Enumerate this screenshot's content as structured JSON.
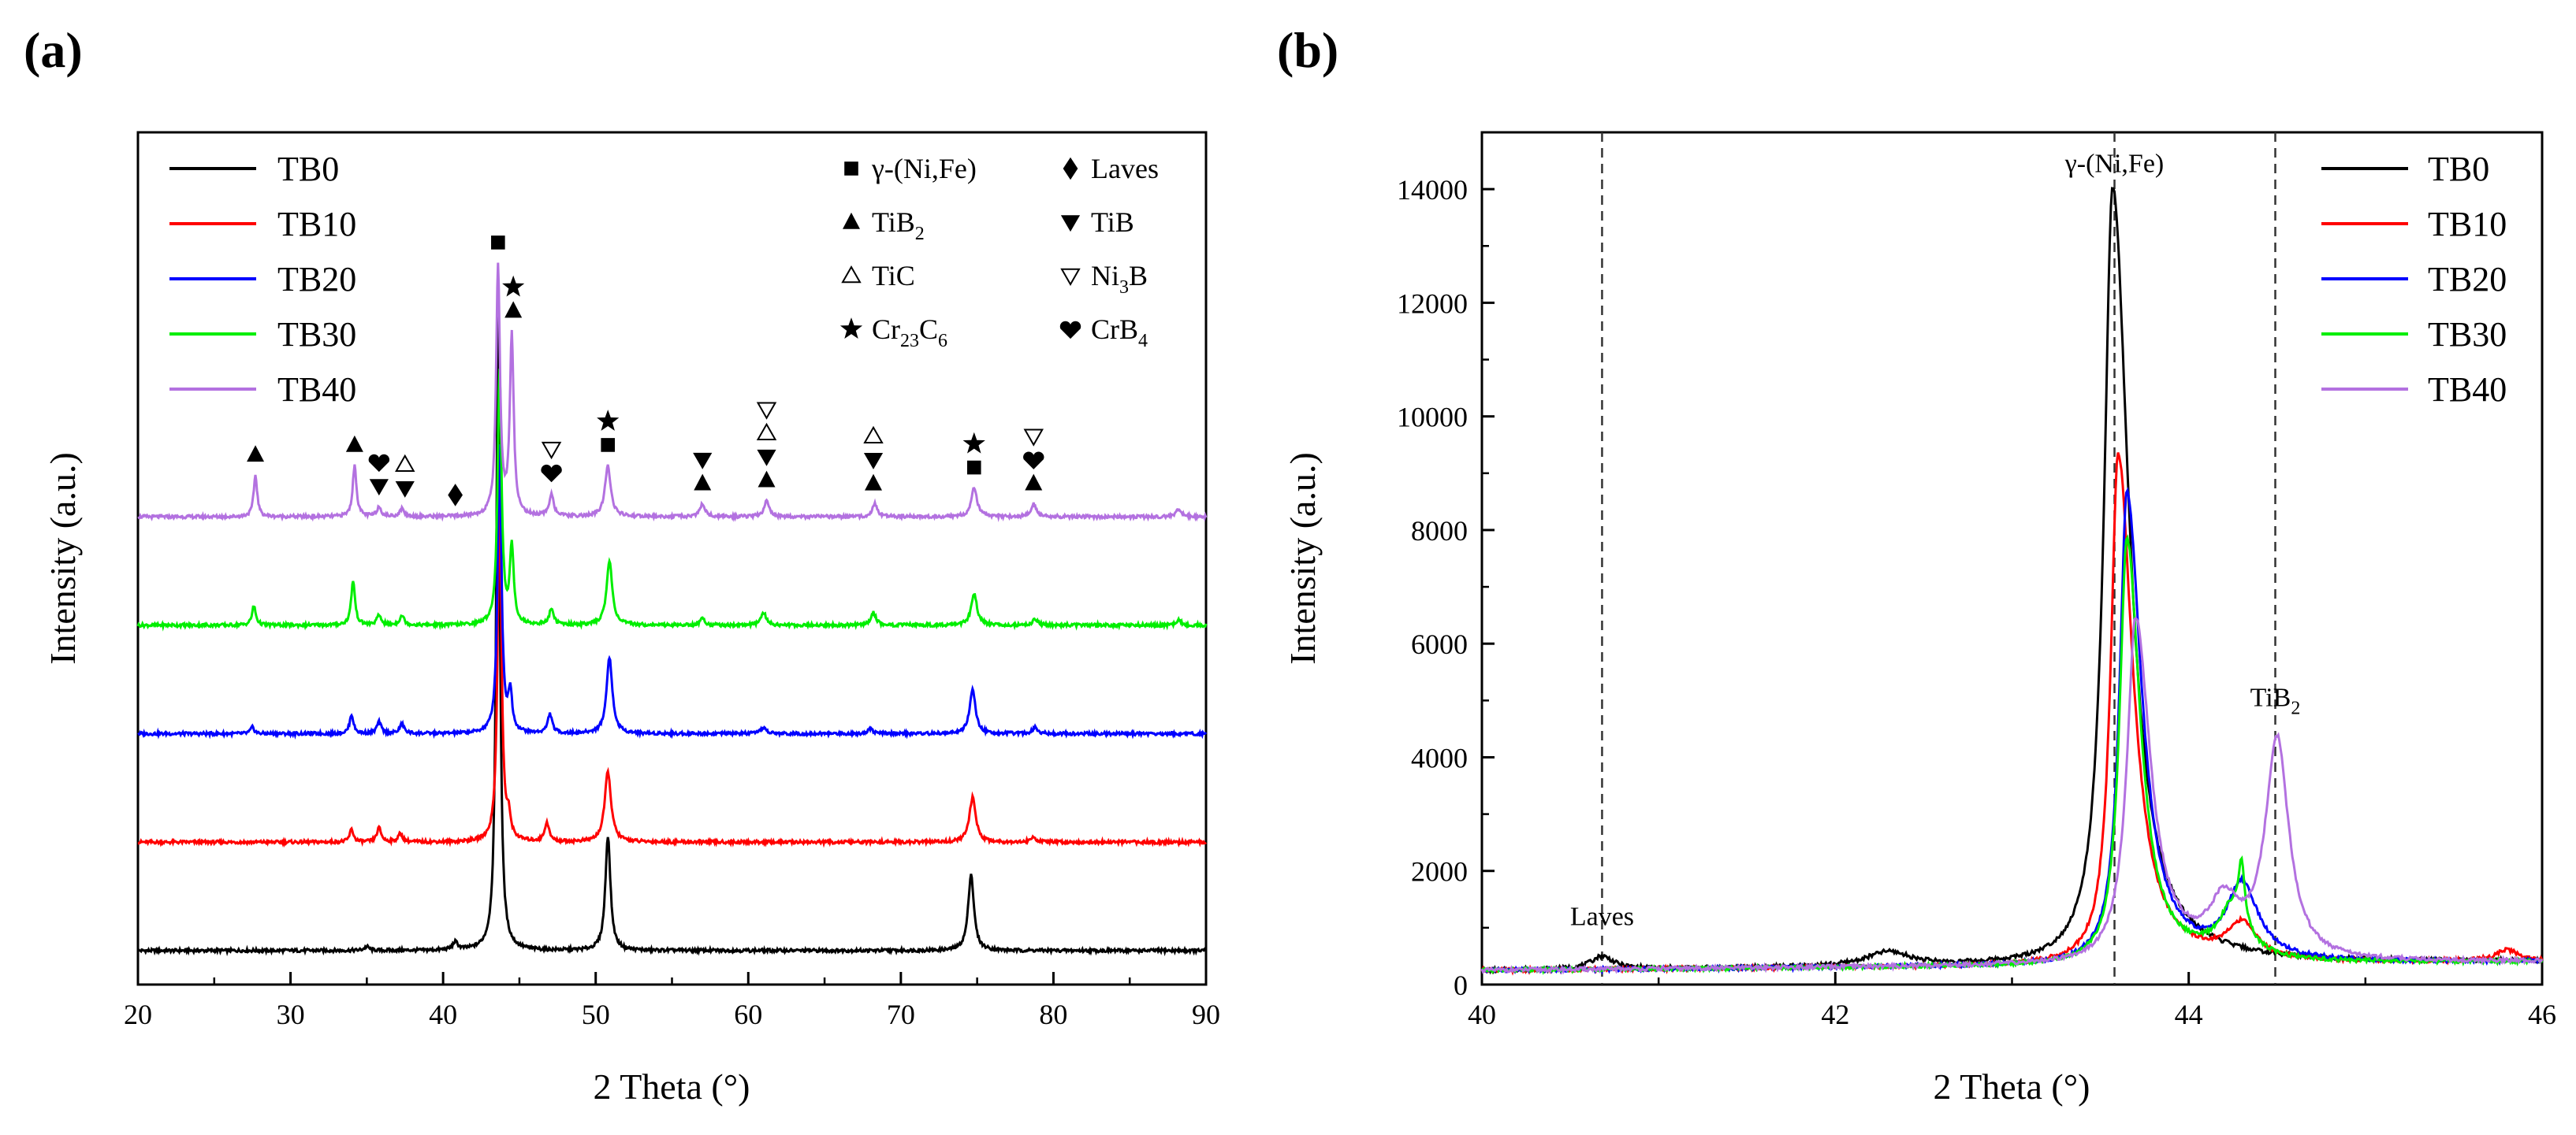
{
  "figure": {
    "panels": [
      {
        "label": "(a)",
        "chart_data": {
          "type": "line",
          "title": "",
          "xlabel": "2 Theta (°)",
          "ylabel": "Intensity (a.u.)",
          "xlim": [
            20,
            90
          ],
          "x_ticks": [
            20,
            30,
            40,
            50,
            60,
            70,
            80,
            90
          ],
          "y_ticks_shown": false,
          "grid": false,
          "legend_position": "top-left",
          "series": [
            {
              "name": "TB0",
              "color": "#000000",
              "offset": 0,
              "baseline": 1.0,
              "peaks": [
                [
                  43.6,
                  100,
                  0.28
                ],
                [
                  50.8,
                  18,
                  0.4
                ],
                [
                  74.6,
                  12,
                  0.45
                ],
                [
                  40.8,
                  1.2,
                  0.4
                ],
                [
                  35.0,
                  0.6,
                  0.4
                ]
              ]
            },
            {
              "name": "TB10",
              "color": "#ff0000",
              "offset": 17,
              "baseline": 1.0,
              "peaks": [
                [
                  43.7,
                  55,
                  0.3
                ],
                [
                  44.3,
                  3,
                  0.3
                ],
                [
                  50.8,
                  11,
                  0.5
                ],
                [
                  74.7,
                  7,
                  0.5
                ],
                [
                  34.0,
                  2,
                  0.3
                ],
                [
                  35.8,
                  2.2,
                  0.35
                ],
                [
                  37.2,
                  1.3,
                  0.35
                ],
                [
                  46.8,
                  3,
                  0.35
                ],
                [
                  78.7,
                  0.8,
                  0.4
                ]
              ]
            },
            {
              "name": "TB20",
              "color": "#0000ff",
              "offset": 34,
              "baseline": 1.0,
              "peaks": [
                [
                  43.7,
                  45,
                  0.3
                ],
                [
                  44.4,
                  6,
                  0.3
                ],
                [
                  50.9,
                  12,
                  0.45
                ],
                [
                  74.7,
                  7,
                  0.45
                ],
                [
                  34.0,
                  3,
                  0.3
                ],
                [
                  35.8,
                  1.8,
                  0.35
                ],
                [
                  37.3,
                  1.5,
                  0.35
                ],
                [
                  27.5,
                  1.0,
                  0.3
                ],
                [
                  47.0,
                  3,
                  0.35
                ],
                [
                  61.0,
                  1.0,
                  0.4
                ],
                [
                  68.0,
                  0.8,
                  0.4
                ],
                [
                  78.8,
                  1.0,
                  0.4
                ]
              ]
            },
            {
              "name": "TB30",
              "color": "#00ee00",
              "offset": 51,
              "baseline": 1.0,
              "peaks": [
                [
                  43.7,
                  40,
                  0.3
                ],
                [
                  44.5,
                  12,
                  0.3
                ],
                [
                  50.9,
                  10,
                  0.45
                ],
                [
                  74.8,
                  5,
                  0.45
                ],
                [
                  27.6,
                  3,
                  0.3
                ],
                [
                  34.1,
                  7,
                  0.3
                ],
                [
                  35.8,
                  1.5,
                  0.35
                ],
                [
                  37.3,
                  1.5,
                  0.35
                ],
                [
                  47.1,
                  2.5,
                  0.35
                ],
                [
                  57.0,
                  1.0,
                  0.4
                ],
                [
                  61.0,
                  2.0,
                  0.4
                ],
                [
                  68.2,
                  2.0,
                  0.4
                ],
                [
                  78.8,
                  1.0,
                  0.4
                ],
                [
                  88.2,
                  0.8,
                  0.4
                ]
              ]
            },
            {
              "name": "TB40",
              "color": "#b371e0",
              "offset": 68,
              "baseline": 1.0,
              "peaks": [
                [
                  43.6,
                  39,
                  0.3
                ],
                [
                  44.5,
                  28,
                  0.3
                ],
                [
                  50.8,
                  8,
                  0.45
                ],
                [
                  74.8,
                  4.5,
                  0.45
                ],
                [
                  27.7,
                  6.5,
                  0.28
                ],
                [
                  34.2,
                  8,
                  0.3
                ],
                [
                  35.8,
                  1.5,
                  0.35
                ],
                [
                  37.3,
                  1.2,
                  0.35
                ],
                [
                  47.1,
                  3.5,
                  0.35
                ],
                [
                  57.0,
                  2.0,
                  0.4
                ],
                [
                  61.2,
                  2.5,
                  0.4
                ],
                [
                  68.3,
                  2.0,
                  0.4
                ],
                [
                  78.7,
                  2.0,
                  0.4
                ],
                [
                  88.2,
                  1.2,
                  0.4
                ]
              ]
            }
          ],
          "phase_legend": [
            {
              "symbol": "square",
              "label": "γ-(Ni,Fe)"
            },
            {
              "symbol": "diamond",
              "label": "Laves"
            },
            {
              "symbol": "triangle-up",
              "label": "TiB",
              "sub": "2"
            },
            {
              "symbol": "triangle-down",
              "label": "TiB"
            },
            {
              "symbol": "triangle-up-open",
              "label": "TiC"
            },
            {
              "symbol": "triangle-down-open",
              "label": "Ni",
              "sub": "3",
              "after": "B"
            },
            {
              "symbol": "star",
              "label": "Cr",
              "sub": "23",
              "mid": "C",
              "sub2": "6"
            },
            {
              "symbol": "heart",
              "label": "CrB",
              "sub": "4"
            }
          ],
          "markers": [
            {
              "x": 27.7,
              "symbols": [
                "triangle-up"
              ]
            },
            {
              "x": 34.2,
              "symbols": [
                "triangle-up"
              ]
            },
            {
              "x": 35.8,
              "symbols": [
                "triangle-down",
                "heart"
              ]
            },
            {
              "x": 37.5,
              "symbols": [
                "triangle-down",
                "triangle-up-open"
              ]
            },
            {
              "x": 40.8,
              "symbols": [
                "diamond"
              ]
            },
            {
              "x": 43.6,
              "symbols": [
                "square"
              ]
            },
            {
              "x": 44.6,
              "symbols": [
                "triangle-up",
                "star"
              ]
            },
            {
              "x": 47.1,
              "symbols": [
                "heart",
                "triangle-down-open"
              ]
            },
            {
              "x": 50.8,
              "symbols": [
                "square",
                "star"
              ]
            },
            {
              "x": 57.0,
              "symbols": [
                "triangle-up",
                "triangle-down"
              ]
            },
            {
              "x": 61.2,
              "symbols": [
                "triangle-up",
                "triangle-down",
                "triangle-up-open",
                "triangle-down-open"
              ]
            },
            {
              "x": 68.2,
              "symbols": [
                "triangle-up",
                "triangle-down",
                "triangle-up-open"
              ]
            },
            {
              "x": 74.8,
              "symbols": [
                "square",
                "star"
              ]
            },
            {
              "x": 78.7,
              "symbols": [
                "triangle-up",
                "heart",
                "triangle-down-open"
              ]
            }
          ]
        }
      },
      {
        "label": "(b)",
        "chart_data": {
          "type": "line",
          "title": "",
          "xlabel": "2 Theta (°)",
          "ylabel": "Intensity (a.u.)",
          "xlim": [
            40,
            46
          ],
          "ylim": [
            0,
            15000
          ],
          "x_ticks": [
            40,
            42,
            44,
            46
          ],
          "y_ticks": [
            0,
            2000,
            4000,
            6000,
            8000,
            10000,
            12000,
            14000
          ],
          "grid": false,
          "legend_position": "top-right",
          "vlines": [
            40.68,
            43.58,
            44.49
          ],
          "annotations": [
            {
              "text": "Laves",
              "x": 40.68,
              "y": 1050
            },
            {
              "text": "γ-(Ni,Fe)",
              "x": 43.58,
              "y": 14300
            },
            {
              "text": "TiB",
              "sub": "2",
              "x": 44.49,
              "y": 4900
            }
          ],
          "series": [
            {
              "name": "TB0",
              "color": "#000000",
              "baseline": 250,
              "peaks": [
                [
                  43.57,
                  13700,
                  0.12,
                  0.22
                ],
                [
                  40.68,
                  230,
                  0.15,
                  0.15
                ],
                [
                  42.3,
                  250,
                  0.3,
                  0.3
                ]
              ]
            },
            {
              "name": "TB10",
              "color": "#ff0000",
              "baseline": 250,
              "peaks": [
                [
                  43.6,
                  9000,
                  0.1,
                  0.2
                ],
                [
                  44.3,
                  600,
                  0.2,
                  0.2
                ],
                [
                  45.8,
                  200,
                  0.15,
                  0.15
                ]
              ]
            },
            {
              "name": "TB20",
              "color": "#0000ff",
              "baseline": 250,
              "peaks": [
                [
                  43.65,
                  8300,
                  0.1,
                  0.2
                ],
                [
                  44.3,
                  1300,
                  0.2,
                  0.22
                ]
              ]
            },
            {
              "name": "TB30",
              "color": "#00ee00",
              "baseline": 250,
              "peaks": [
                [
                  43.65,
                  7500,
                  0.1,
                  0.18
                ],
                [
                  44.3,
                  1000,
                  0.04,
                  0.04
                ],
                [
                  44.25,
                  900,
                  0.2,
                  0.2
                ]
              ]
            },
            {
              "name": "TB40",
              "color": "#b371e0",
              "baseline": 250,
              "peaks": [
                [
                  43.7,
                  6050,
                  0.12,
                  0.2
                ],
                [
                  44.5,
                  3850,
                  0.16,
                  0.16
                ],
                [
                  44.2,
                  900,
                  0.2,
                  0.2
                ]
              ]
            }
          ]
        }
      }
    ]
  }
}
